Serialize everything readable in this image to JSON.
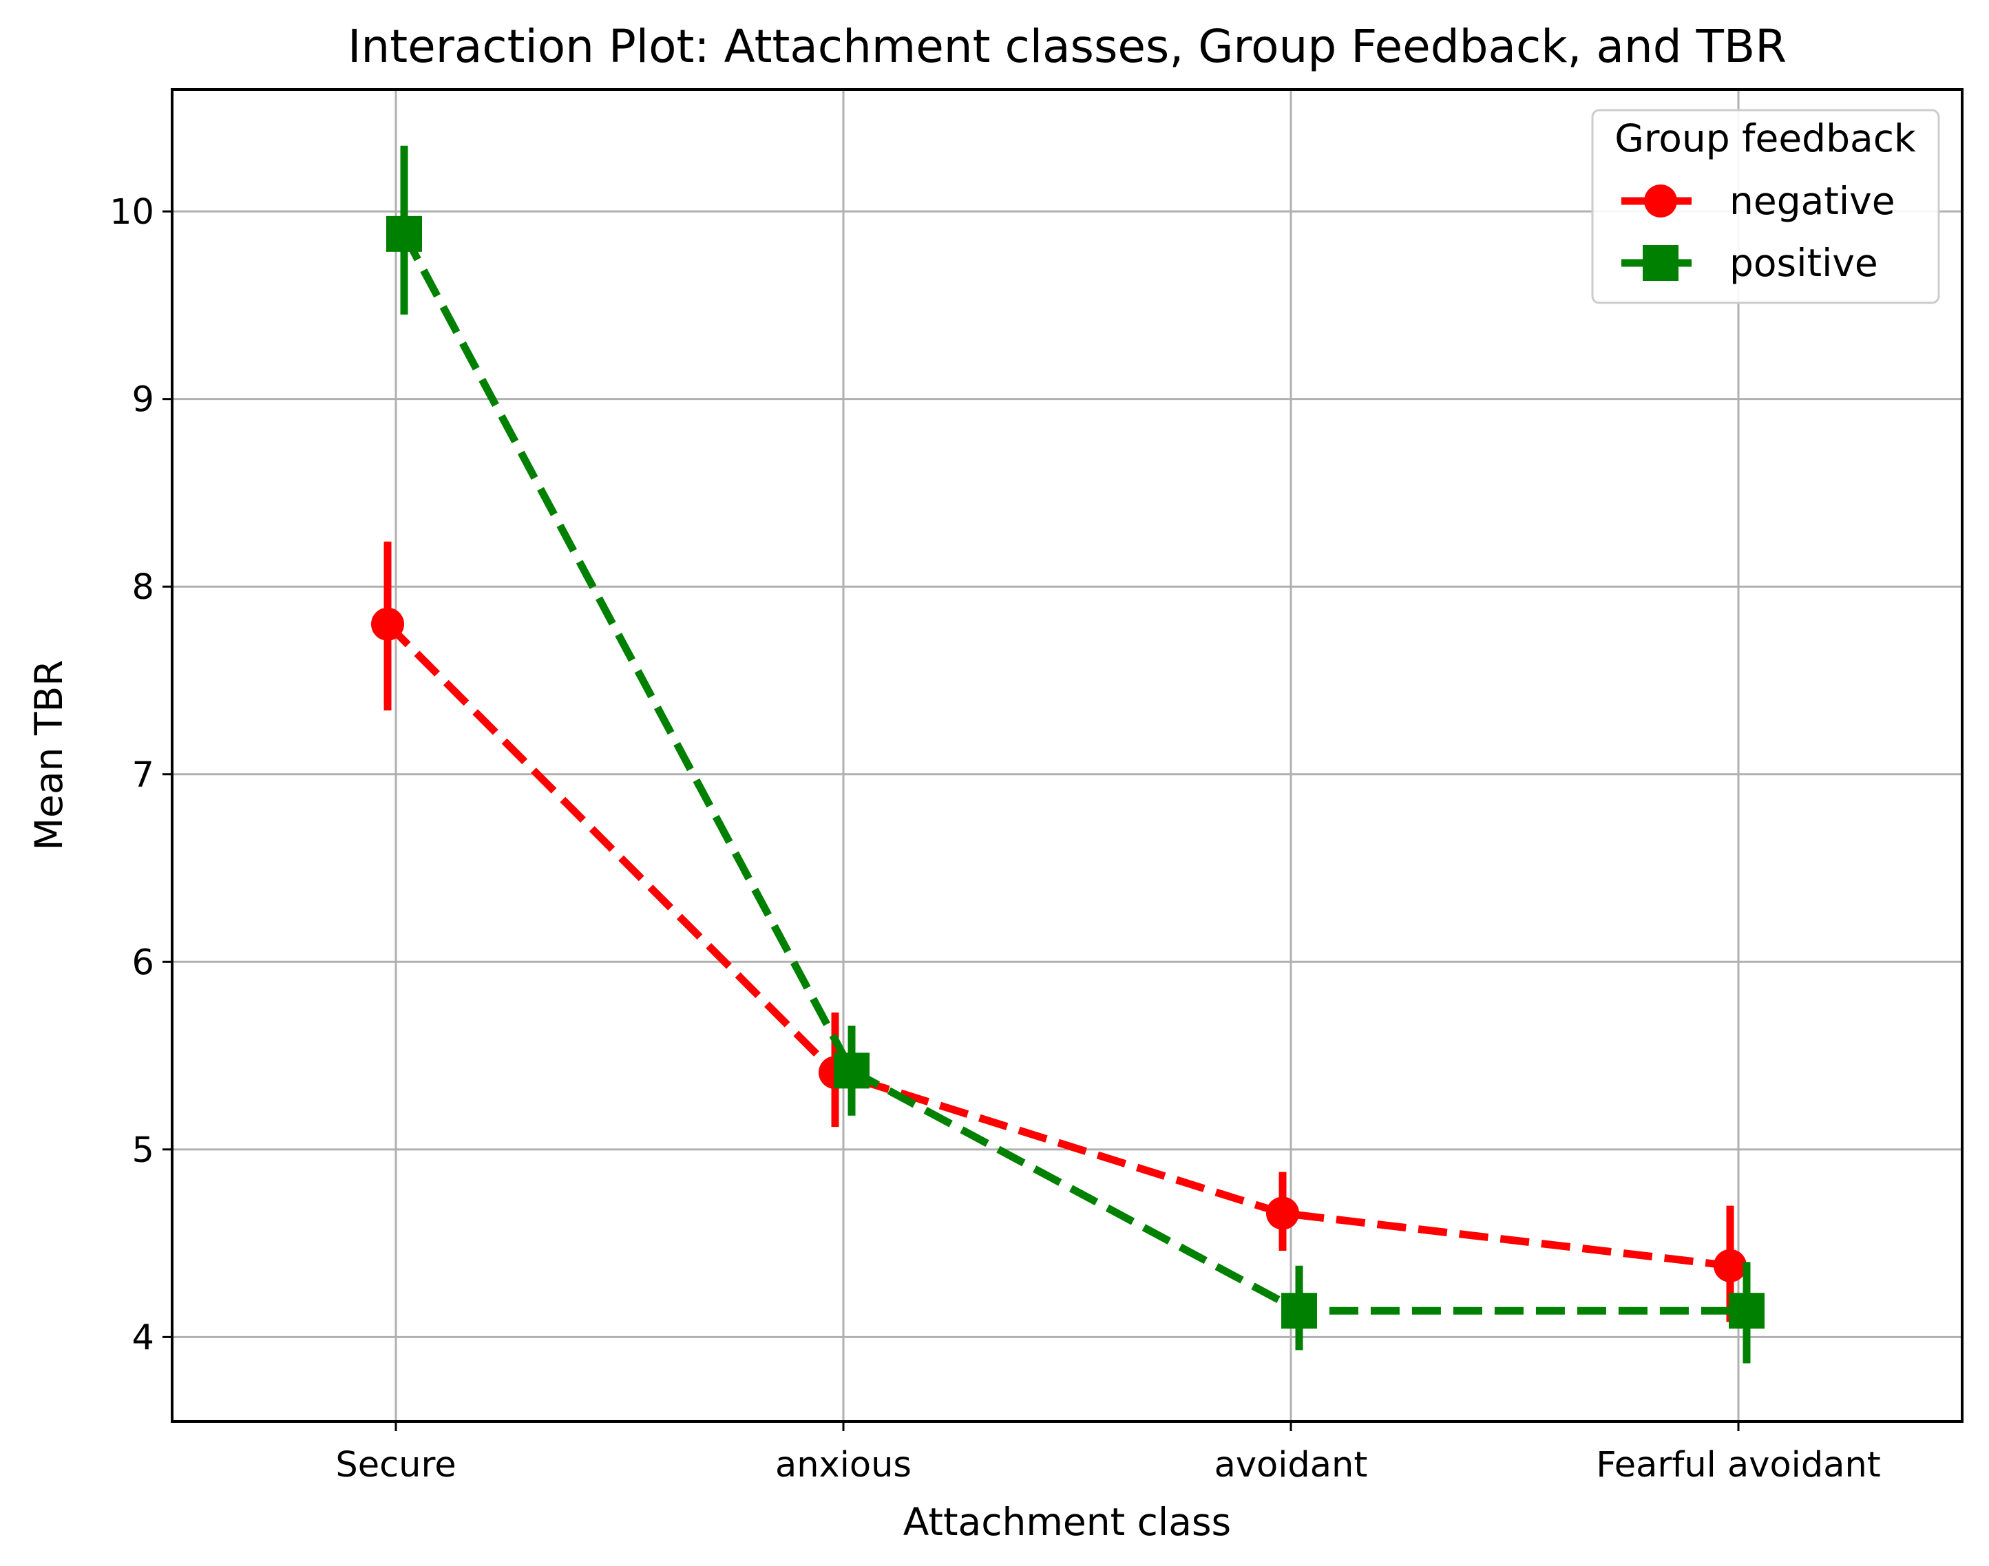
{
  "chart_data": {
    "type": "line",
    "title": "Interaction Plot: Attachment classes, Group Feedback, and TBR",
    "xlabel": "Attachment class",
    "ylabel": "Mean TBR",
    "categories": [
      "Secure",
      "anxious",
      "avoidant",
      "Fearful avoidant"
    ],
    "yticks": [
      "4",
      "5",
      "6",
      "7",
      "8",
      "9",
      "10"
    ],
    "ylim": [
      3.55,
      10.65
    ],
    "grid": true,
    "legend": {
      "title": "Group feedback",
      "placement": "top-right",
      "entries": [
        "negative",
        "positive"
      ]
    },
    "series": [
      {
        "name": "negative",
        "color": "#ff0000",
        "marker": "circle",
        "linestyle": "dashed",
        "values": [
          7.8,
          5.41,
          4.66,
          4.38
        ],
        "err_low": [
          7.34,
          5.12,
          4.46,
          4.08
        ],
        "err_high": [
          8.24,
          5.73,
          4.88,
          4.7
        ]
      },
      {
        "name": "positive",
        "color": "#008000",
        "marker": "square",
        "linestyle": "dashed",
        "values": [
          9.88,
          5.42,
          4.14,
          4.14
        ],
        "err_low": [
          9.45,
          5.18,
          3.93,
          3.86
        ],
        "err_high": [
          10.35,
          5.66,
          4.38,
          4.4
        ]
      }
    ]
  }
}
